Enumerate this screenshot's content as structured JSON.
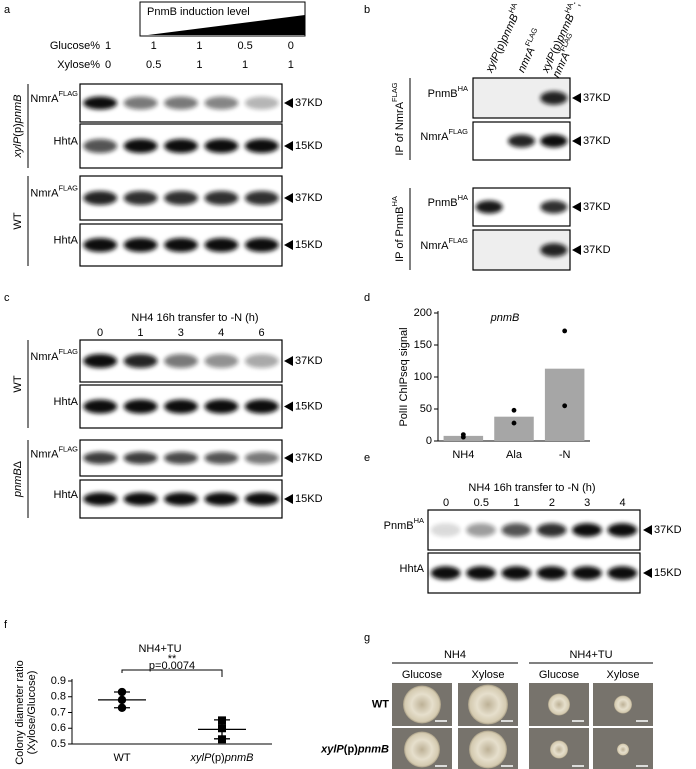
{
  "panels": {
    "a": {
      "label": "a",
      "induction": "PnmB induction level",
      "conditions": [
        {
          "name": "Glucose%",
          "values": [
            1,
            1,
            1,
            0.5,
            0
          ]
        },
        {
          "name": "Xylose%",
          "values": [
            0,
            0.5,
            1,
            1,
            1
          ]
        }
      ],
      "groups": [
        {
          "name": [
            {
              "t": "xylP",
              "s": "i"
            },
            {
              "t": "(p)"
            },
            {
              "t": "pnmB",
              "s": "i"
            }
          ],
          "blots": [
            {
              "name": [
                {
                  "t": "NmrA"
                },
                {
                  "t": "FLAG",
                  "s": "sup"
                }
              ],
              "marker": "37KD"
            },
            {
              "name": "HhtA",
              "marker": "15KD"
            }
          ]
        },
        {
          "name": "WT",
          "blots": [
            {
              "name": [
                {
                  "t": "NmrA"
                },
                {
                  "t": "FLAG",
                  "s": "sup"
                }
              ],
              "marker": "37KD"
            },
            {
              "name": "HhtA",
              "marker": "15KD"
            }
          ]
        }
      ]
    },
    "b": {
      "label": "b",
      "columns": [
        [
          [
            {
              "t": "xylP",
              "s": "i"
            },
            {
              "t": "(p)"
            },
            {
              "t": "pnmB",
              "s": "i"
            },
            {
              "t": "HA",
              "s": "sup"
            }
          ]
        ],
        [
          [
            {
              "t": "nmrA",
              "s": "i"
            },
            {
              "t": "FLAG",
              "s": "sup"
            }
          ]
        ],
        [
          [
            {
              "t": "xylP",
              "s": "i"
            },
            {
              "t": "(p)"
            },
            {
              "t": "pnmB",
              "s": "i"
            },
            {
              "t": "HA",
              "s": "sup"
            },
            ";"
          ],
          [
            {
              "t": "nmrA",
              "s": "i"
            },
            {
              "t": "FLAG",
              "s": "sup"
            }
          ]
        ]
      ],
      "groups": [
        {
          "name": [
            {
              "t": "IP of NmrA"
            },
            {
              "t": "FLAG",
              "s": "sup"
            }
          ],
          "blots": [
            {
              "name": [
                {
                  "t": "PnmB"
                },
                {
                  "t": "HA",
                  "s": "sup"
                }
              ],
              "marker": "37KD"
            },
            {
              "name": [
                {
                  "t": "NmrA"
                },
                {
                  "t": "FLAG",
                  "s": "sup"
                }
              ],
              "marker": "37KD"
            }
          ]
        },
        {
          "name": [
            {
              "t": "IP of PnmB"
            },
            {
              "t": "HA",
              "s": "sup"
            }
          ],
          "blots": [
            {
              "name": [
                {
                  "t": "PnmB"
                },
                {
                  "t": "HA",
                  "s": "sup"
                }
              ],
              "marker": "37KD"
            },
            {
              "name": [
                {
                  "t": "NmrA"
                },
                {
                  "t": "FLAG",
                  "s": "sup"
                }
              ],
              "marker": "37KD"
            }
          ]
        }
      ]
    },
    "c": {
      "label": "c",
      "title": "NH4 16h transfer to -N (h)",
      "lanes": [
        0,
        1,
        3,
        4,
        6
      ],
      "groups": [
        {
          "name": "WT",
          "blots": [
            {
              "name": [
                {
                  "t": "NmrA"
                },
                {
                  "t": "FLAG",
                  "s": "sup"
                }
              ],
              "marker": "37KD"
            },
            {
              "name": "HhtA",
              "marker": "15KD"
            }
          ]
        },
        {
          "name": [
            {
              "t": "pnmB",
              "s": "i"
            },
            {
              "t": "Δ"
            }
          ],
          "blots": [
            {
              "name": [
                {
                  "t": "NmrA"
                },
                {
                  "t": "FLAG",
                  "s": "sup"
                }
              ],
              "marker": "37KD"
            },
            {
              "name": "HhtA",
              "marker": "15KD"
            }
          ]
        }
      ]
    },
    "e": {
      "label": "e",
      "title": "NH4 16h transfer to -N (h)",
      "lanes": [
        0,
        0.5,
        1,
        2,
        3,
        4
      ],
      "blots": [
        {
          "name": [
            {
              "t": "PnmB"
            },
            {
              "t": "HA",
              "s": "sup"
            }
          ],
          "marker": "37KD"
        },
        {
          "name": "HhtA",
          "marker": "15KD"
        }
      ]
    },
    "g": {
      "label": "g",
      "media": [
        {
          "name": "NH4",
          "plates": [
            "Glucose",
            "Xylose"
          ]
        },
        {
          "name": "NH4+TU",
          "plates": [
            "Glucose",
            "Xylose"
          ]
        }
      ],
      "strains": [
        "WT",
        [
          {
            "t": "xylP",
            "s": "i"
          },
          {
            "t": "(p)"
          },
          {
            "t": "pnmB",
            "s": "i"
          }
        ]
      ]
    }
  },
  "chart_data": [
    {
      "panel_label": "d",
      "type": "bar",
      "title": [
        {
          "t": "pnmB",
          "s": "i"
        }
      ],
      "ylabel": "PolII ChIPseq signal",
      "categories": [
        "NH4",
        "Ala",
        "-N"
      ],
      "values": [
        8,
        38,
        113
      ],
      "points": [
        [
          10,
          6
        ],
        [
          48,
          28
        ],
        [
          172,
          55
        ]
      ],
      "color": "#a6a6a6",
      "point_color": "#000000",
      "ylim": [
        0,
        200
      ],
      "yticks": [
        0,
        50,
        100,
        150,
        200
      ]
    },
    {
      "panel_label": "f",
      "type": "scatter",
      "title": "NH4+TU",
      "ylabel": [
        "Colony diameter ratio",
        "(Xylose/Glucose)"
      ],
      "categories": [
        "WT",
        [
          {
            "t": "xylP",
            "s": "i"
          },
          {
            "t": "(p)"
          },
          {
            "t": "pnmB",
            "s": "i"
          }
        ]
      ],
      "points": [
        [
          0.83,
          0.78,
          0.73
        ],
        [
          0.65,
          0.6,
          0.53
        ]
      ],
      "markers": [
        "circle",
        "square"
      ],
      "point_color": "#000000",
      "means": [
        0.78,
        0.593
      ],
      "sd": [
        0.05,
        0.06
      ],
      "ylim": [
        0.5,
        0.9
      ],
      "yticks": [
        0.5,
        0.6,
        0.7,
        0.8,
        0.9
      ],
      "annotation": {
        "significance": "**",
        "p": "p=0.0074"
      }
    }
  ]
}
